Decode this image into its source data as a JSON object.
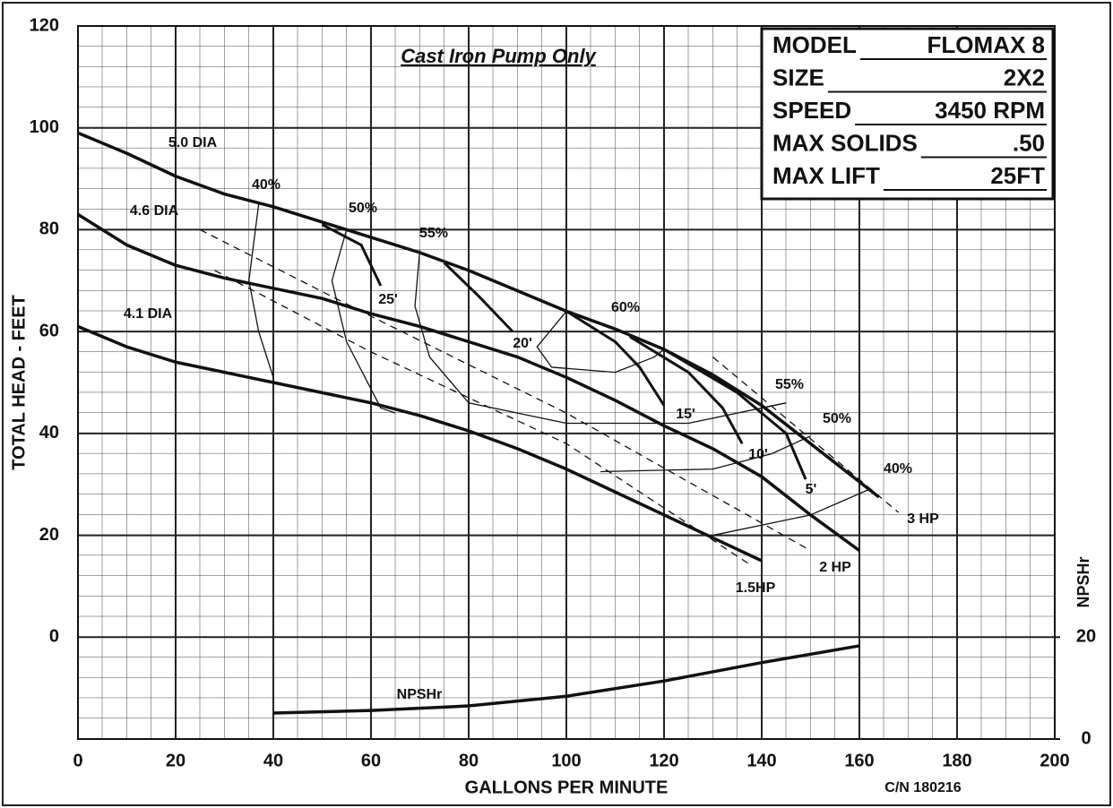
{
  "chart_data": {
    "type": "line",
    "title": "Cast Iron Pump Only",
    "xlabel": "GALLONS PER MINUTE",
    "ylabel": "TOTAL HEAD - FEET",
    "y2label": "NPSHr",
    "footnote": "C/N 180216",
    "xlim": [
      0,
      200
    ],
    "xticks": [
      0,
      20,
      40,
      60,
      80,
      100,
      120,
      140,
      160,
      180,
      200
    ],
    "ylim": [
      -20,
      120
    ],
    "yticks": [
      0,
      20,
      40,
      60,
      80,
      100,
      120
    ],
    "y2lim": [
      0,
      140
    ],
    "y2ticks": [
      0,
      20
    ],
    "grid": true,
    "color": "#111111",
    "series": [
      {
        "name": "5.0 DIA",
        "style": "thick",
        "x": [
          0,
          10,
          20,
          30,
          40,
          50,
          60,
          70,
          80,
          90,
          100,
          110,
          120,
          130,
          140,
          150,
          160,
          164
        ],
        "values": [
          99,
          95,
          90.5,
          87,
          84.5,
          81.5,
          78.5,
          75.5,
          72,
          68,
          64,
          60.5,
          56.5,
          51.5,
          45.5,
          38,
          30.5,
          27.5
        ]
      },
      {
        "name": "4.6 DIA",
        "style": "thick",
        "x": [
          0,
          10,
          20,
          30,
          40,
          50,
          60,
          70,
          80,
          90,
          100,
          110,
          120,
          130,
          140,
          150,
          160
        ],
        "values": [
          83,
          77,
          73,
          70.5,
          68.5,
          66.5,
          63.5,
          61,
          58,
          55,
          51,
          46.5,
          41.5,
          37,
          31.5,
          24,
          17
        ]
      },
      {
        "name": "4.1 DIA",
        "style": "thick",
        "x": [
          0,
          10,
          20,
          30,
          40,
          50,
          60,
          70,
          80,
          90,
          100,
          110,
          120,
          130,
          140
        ],
        "values": [
          61,
          57,
          54,
          52,
          50,
          48,
          46,
          43.5,
          40.5,
          37,
          33,
          28.5,
          24,
          19.5,
          15
        ]
      },
      {
        "name": "3 HP",
        "style": "dashed",
        "x": [
          130,
          168
        ],
        "values": [
          55,
          24.5
        ]
      },
      {
        "name": "2 HP",
        "style": "dashed",
        "x": [
          25,
          60,
          100,
          150
        ],
        "values": [
          80,
          63,
          44,
          17
        ]
      },
      {
        "name": "1.5HP",
        "style": "dashed",
        "x": [
          28,
          60,
          100,
          138
        ],
        "values": [
          72,
          56,
          38,
          14
        ]
      },
      {
        "name": "25'",
        "style": "medium",
        "x": [
          50,
          58,
          62
        ],
        "values": [
          81,
          77,
          69
        ]
      },
      {
        "name": "20'",
        "style": "medium",
        "x": [
          75,
          82,
          89
        ],
        "values": [
          73.5,
          67,
          60
        ]
      },
      {
        "name": "15'",
        "style": "medium",
        "x": [
          100,
          110,
          115,
          120
        ],
        "values": [
          64,
          58,
          53,
          45.5
        ]
      },
      {
        "name": "10'",
        "style": "medium",
        "x": [
          113,
          125,
          132,
          136
        ],
        "values": [
          59,
          52,
          45,
          38
        ]
      },
      {
        "name": "5'",
        "style": "medium",
        "x": [
          120,
          135,
          145,
          149
        ],
        "values": [
          56.5,
          48,
          40,
          31
        ]
      },
      {
        "name": "40%",
        "style": "thin",
        "x": [
          37,
          35,
          37,
          40
        ],
        "values": [
          85,
          70,
          60,
          51
        ]
      },
      {
        "name": "50%",
        "style": "thin",
        "x": [
          55,
          52,
          55,
          62,
          65
        ],
        "values": [
          80,
          70,
          58,
          45,
          44
        ]
      },
      {
        "name": "55%",
        "style": "thin",
        "x": [
          70,
          69,
          72,
          80,
          100,
          125,
          140,
          145
        ],
        "values": [
          76,
          65,
          55,
          46,
          42,
          42,
          45,
          46
        ]
      },
      {
        "name": "60%",
        "style": "thin",
        "x": [
          100,
          94,
          97,
          110,
          118,
          120
        ],
        "values": [
          64,
          57,
          53,
          52,
          55,
          56.5
        ]
      },
      {
        "name": "55%",
        "style": "thin",
        "x": [
          140,
          145
        ],
        "values": [
          45,
          46
        ]
      },
      {
        "name": "50%",
        "style": "thin",
        "x": [
          107,
          130,
          142,
          150
        ],
        "values": [
          32.5,
          33,
          36,
          39.5
        ]
      },
      {
        "name": "40%",
        "style": "thin",
        "x": [
          130,
          150,
          162
        ],
        "values": [
          20,
          24,
          29
        ]
      },
      {
        "name": "NPSHr",
        "style": "thick",
        "axis": "y2",
        "x": [
          40,
          60,
          80,
          100,
          120,
          140,
          160
        ],
        "values": [
          5.1,
          5.6,
          6.5,
          8.4,
          11.4,
          15,
          18.3
        ]
      }
    ]
  },
  "spec_box": [
    {
      "label": "MODEL",
      "value": "FLOMAX 8"
    },
    {
      "label": "SIZE",
      "value": "2X2"
    },
    {
      "label": "SPEED",
      "value": "3450 RPM"
    },
    {
      "label": "MAX SOLIDS",
      "value": ".50"
    },
    {
      "label": "MAX LIFT",
      "value": "25FT"
    }
  ]
}
